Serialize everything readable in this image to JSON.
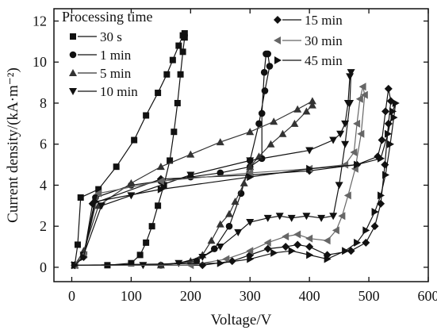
{
  "chart_data": {
    "type": "line",
    "xlabel": "Voltage/V",
    "ylabel": "Current density/(kA·m⁻²)",
    "xlim": [
      -30,
      600
    ],
    "ylim": [
      -0.7,
      12.6
    ],
    "x_ticks": [
      0,
      100,
      200,
      300,
      400,
      500,
      600
    ],
    "y_ticks": [
      0,
      2,
      4,
      6,
      8,
      10,
      12
    ],
    "grid": false,
    "legend_title": "Processing time",
    "legend_placement": "top",
    "series": [
      {
        "name": "30 s",
        "marker": "square",
        "color": "#111111",
        "points": [
          [
            5,
            0.1
          ],
          [
            10,
            1.1
          ],
          [
            15,
            3.4
          ],
          [
            45,
            3.8
          ],
          [
            75,
            4.9
          ],
          [
            105,
            6.2
          ],
          [
            125,
            7.4
          ],
          [
            145,
            8.5
          ],
          [
            160,
            9.4
          ],
          [
            170,
            10.1
          ],
          [
            180,
            10.8
          ],
          [
            187,
            11.3
          ],
          [
            190,
            11.4
          ],
          [
            190,
            11.2
          ],
          [
            187,
            10.5
          ],
          [
            183,
            9.4
          ],
          [
            178,
            8.0
          ],
          [
            172,
            6.6
          ],
          [
            165,
            5.2
          ],
          [
            155,
            4.0
          ],
          [
            145,
            3.0
          ],
          [
            135,
            2.0
          ],
          [
            125,
            1.2
          ],
          [
            115,
            0.6
          ],
          [
            100,
            0.2
          ],
          [
            60,
            0.1
          ],
          [
            5,
            0.1
          ]
        ]
      },
      {
        "name": "1 min",
        "marker": "circle",
        "color": "#111111",
        "points": [
          [
            5,
            0.1
          ],
          [
            20,
            0.6
          ],
          [
            40,
            3.4
          ],
          [
            100,
            4.0
          ],
          [
            150,
            4.2
          ],
          [
            200,
            4.4
          ],
          [
            250,
            4.6
          ],
          [
            300,
            4.9
          ],
          [
            320,
            5.3
          ],
          [
            320,
            7.5
          ],
          [
            324,
            9.5
          ],
          [
            327,
            10.4
          ],
          [
            330,
            10.4
          ],
          [
            333,
            9.8
          ],
          [
            325,
            8.6
          ],
          [
            315,
            7.0
          ],
          [
            300,
            5.2
          ],
          [
            285,
            3.6
          ],
          [
            265,
            2.0
          ],
          [
            240,
            0.9
          ],
          [
            210,
            0.3
          ],
          [
            150,
            0.1
          ],
          [
            5,
            0.1
          ]
        ]
      },
      {
        "name": "5 min",
        "marker": "triangle-up",
        "color": "#333333",
        "points": [
          [
            5,
            0.1
          ],
          [
            20,
            0.8
          ],
          [
            45,
            3.0
          ],
          [
            100,
            4.1
          ],
          [
            150,
            4.9
          ],
          [
            200,
            5.5
          ],
          [
            250,
            6.1
          ],
          [
            300,
            6.6
          ],
          [
            340,
            7.1
          ],
          [
            380,
            7.7
          ],
          [
            405,
            8.1
          ],
          [
            405,
            7.9
          ],
          [
            395,
            7.6
          ],
          [
            375,
            7.0
          ],
          [
            355,
            6.5
          ],
          [
            335,
            6.0
          ],
          [
            315,
            5.4
          ],
          [
            300,
            4.9
          ],
          [
            290,
            4.1
          ],
          [
            275,
            3.2
          ],
          [
            265,
            2.6
          ],
          [
            250,
            2.1
          ],
          [
            235,
            1.3
          ],
          [
            220,
            0.6
          ],
          [
            200,
            0.3
          ],
          [
            150,
            0.1
          ],
          [
            5,
            0.1
          ]
        ]
      },
      {
        "name": "10 min",
        "marker": "triangle-down",
        "color": "#111111",
        "points": [
          [
            5,
            0.1
          ],
          [
            20,
            0.6
          ],
          [
            50,
            3.0
          ],
          [
            100,
            3.5
          ],
          [
            200,
            4.5
          ],
          [
            300,
            5.2
          ],
          [
            400,
            5.7
          ],
          [
            440,
            6.2
          ],
          [
            452,
            6.5
          ],
          [
            460,
            7.0
          ],
          [
            465,
            8.0
          ],
          [
            468,
            9.3
          ],
          [
            470,
            9.5
          ],
          [
            468,
            8.0
          ],
          [
            460,
            6.0
          ],
          [
            450,
            4.0
          ],
          [
            440,
            2.5
          ],
          [
            420,
            2.4
          ],
          [
            395,
            2.5
          ],
          [
            370,
            2.4
          ],
          [
            350,
            2.5
          ],
          [
            330,
            2.4
          ],
          [
            300,
            2.2
          ],
          [
            280,
            1.7
          ],
          [
            250,
            1.0
          ],
          [
            220,
            0.5
          ],
          [
            180,
            0.2
          ],
          [
            120,
            0.1
          ],
          [
            5,
            0.1
          ]
        ]
      },
      {
        "name": "15 min",
        "marker": "diamond",
        "color": "#111111",
        "points": [
          [
            5,
            0.1
          ],
          [
            20,
            0.5
          ],
          [
            35,
            3.1
          ],
          [
            150,
            4.3
          ],
          [
            300,
            4.5
          ],
          [
            400,
            4.7
          ],
          [
            480,
            5.0
          ],
          [
            515,
            5.4
          ],
          [
            522,
            6.2
          ],
          [
            528,
            7.6
          ],
          [
            533,
            8.7
          ],
          [
            537,
            8.1
          ],
          [
            533,
            7.0
          ],
          [
            527,
            5.0
          ],
          [
            520,
            3.1
          ],
          [
            510,
            2.0
          ],
          [
            495,
            1.2
          ],
          [
            470,
            0.8
          ],
          [
            430,
            0.6
          ],
          [
            400,
            1.0
          ],
          [
            380,
            1.1
          ],
          [
            360,
            1.0
          ],
          [
            330,
            0.9
          ],
          [
            300,
            0.6
          ],
          [
            270,
            0.3
          ],
          [
            220,
            0.1
          ],
          [
            5,
            0.1
          ]
        ]
      },
      {
        "name": "30 min",
        "marker": "triangle-left",
        "color": "#666666",
        "points": [
          [
            5,
            0.1
          ],
          [
            20,
            0.6
          ],
          [
            45,
            3.6
          ],
          [
            150,
            4.2
          ],
          [
            300,
            4.6
          ],
          [
            400,
            4.8
          ],
          [
            460,
            5.0
          ],
          [
            475,
            5.6
          ],
          [
            480,
            7.0
          ],
          [
            485,
            8.2
          ],
          [
            490,
            8.8
          ],
          [
            493,
            8.4
          ],
          [
            487,
            6.5
          ],
          [
            477,
            4.8
          ],
          [
            465,
            3.5
          ],
          [
            455,
            2.5
          ],
          [
            445,
            1.8
          ],
          [
            430,
            1.3
          ],
          [
            400,
            1.4
          ],
          [
            380,
            1.6
          ],
          [
            360,
            1.5
          ],
          [
            330,
            1.2
          ],
          [
            300,
            0.8
          ],
          [
            260,
            0.4
          ],
          [
            200,
            0.1
          ],
          [
            5,
            0.1
          ]
        ]
      },
      {
        "name": "45 min",
        "marker": "triangle-right",
        "color": "#111111",
        "points": [
          [
            5,
            0.1
          ],
          [
            20,
            0.5
          ],
          [
            40,
            3.2
          ],
          [
            150,
            3.8
          ],
          [
            300,
            4.4
          ],
          [
            400,
            4.8
          ],
          [
            480,
            5.0
          ],
          [
            520,
            5.3
          ],
          [
            532,
            6.5
          ],
          [
            540,
            7.6
          ],
          [
            545,
            8.0
          ],
          [
            542,
            7.3
          ],
          [
            536,
            6.0
          ],
          [
            528,
            4.5
          ],
          [
            520,
            3.5
          ],
          [
            510,
            2.7
          ],
          [
            495,
            1.8
          ],
          [
            480,
            1.2
          ],
          [
            460,
            0.8
          ],
          [
            430,
            0.4
          ],
          [
            400,
            0.6
          ],
          [
            370,
            0.8
          ],
          [
            340,
            0.7
          ],
          [
            300,
            0.4
          ],
          [
            250,
            0.2
          ],
          [
            5,
            0.1
          ]
        ]
      }
    ]
  }
}
